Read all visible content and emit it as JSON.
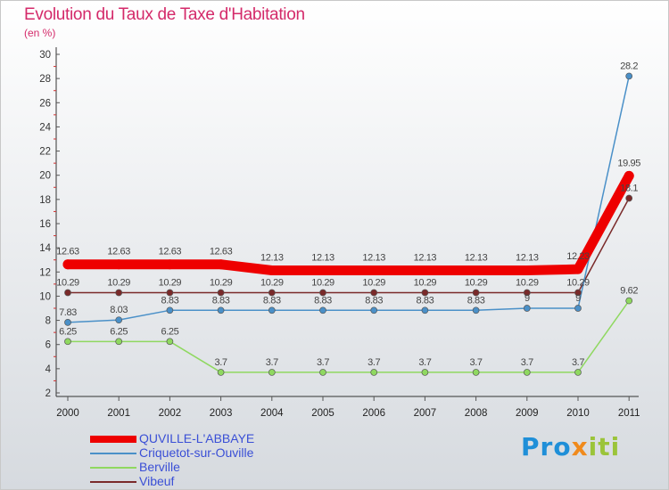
{
  "chart_data": {
    "type": "line",
    "title": "Evolution du Taux de Taxe d'Habitation",
    "subtitle": "(en %)",
    "xlabel": "",
    "ylabel": "(en %)",
    "x": [
      "2000",
      "2001",
      "2002",
      "2003",
      "2004",
      "2005",
      "2006",
      "2007",
      "2008",
      "2009",
      "2010",
      "2011"
    ],
    "ylim": [
      2,
      30
    ],
    "yticks": [
      "2",
      "4",
      "6",
      "8",
      "10",
      "12",
      "14",
      "16",
      "18",
      "20",
      "22",
      "24",
      "26",
      "28",
      "30"
    ],
    "grid": false,
    "legend_position": "bottom-left",
    "series": [
      {
        "name": "QUVILLE-L'ABBAYE",
        "color": "#ee0000",
        "values": [
          12.63,
          12.63,
          12.63,
          12.63,
          12.13,
          12.13,
          12.13,
          12.13,
          12.13,
          12.13,
          12.23,
          19.95
        ],
        "labels": [
          "12.63",
          "12.63",
          "12.63",
          "12.63",
          "12.13",
          "12.13",
          "12.13",
          "12.13",
          "12.13",
          "12.13",
          "12.23",
          "19.95"
        ]
      },
      {
        "name": "Criquetot-sur-Ouville",
        "color": "#4a90c8",
        "values": [
          7.83,
          8.03,
          8.83,
          8.83,
          8.83,
          8.83,
          8.83,
          8.83,
          8.83,
          9,
          9,
          28.2
        ],
        "labels": [
          "7.83",
          "8.03",
          "8.83",
          "8.83",
          "8.83",
          "8.83",
          "8.83",
          "8.83",
          "8.83",
          "9",
          "9",
          "28.2"
        ]
      },
      {
        "name": "Berville",
        "color": "#8fd860",
        "values": [
          6.25,
          6.25,
          6.25,
          3.7,
          3.7,
          3.7,
          3.7,
          3.7,
          3.7,
          3.7,
          3.7,
          9.62
        ],
        "labels": [
          "6.25",
          "6.25",
          "6.25",
          "3.7",
          "3.7",
          "3.7",
          "3.7",
          "3.7",
          "3.7",
          "3.7",
          "3.7",
          "9.62"
        ]
      },
      {
        "name": "Vibeuf",
        "color": "#7a2a2a",
        "values": [
          10.29,
          10.29,
          10.29,
          10.29,
          10.29,
          10.29,
          10.29,
          10.29,
          10.29,
          10.29,
          10.29,
          18.1
        ],
        "labels": [
          "10.29",
          "10.29",
          "10.29",
          "10.29",
          "10.29",
          "10.29",
          "10.29",
          "10.29",
          "10.29",
          "10.29",
          "10.29",
          "18.1"
        ]
      }
    ]
  },
  "brand": {
    "p1": "Pro",
    "p2": "x",
    "p3": "iti"
  }
}
